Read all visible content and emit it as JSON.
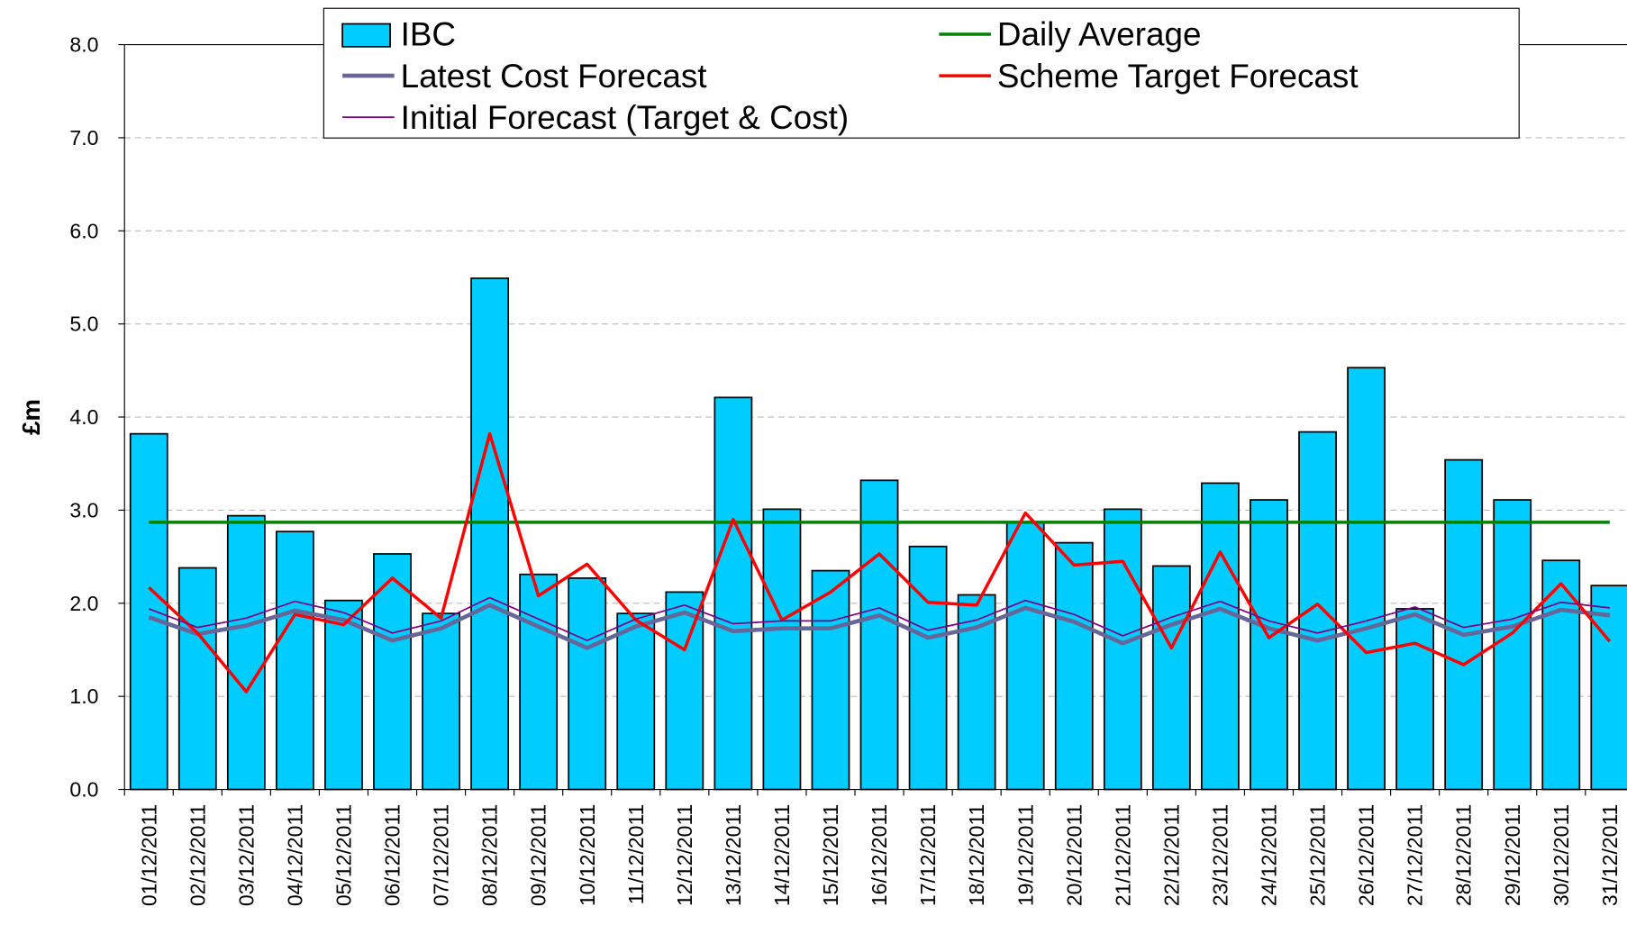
{
  "chart_data": {
    "type": "bar",
    "y_label": "£m",
    "categories": [
      "01/12/2011",
      "02/12/2011",
      "03/12/2011",
      "04/12/2011",
      "05/12/2011",
      "06/12/2011",
      "07/12/2011",
      "08/12/2011",
      "09/12/2011",
      "10/12/2011",
      "11/12/2011",
      "12/12/2011",
      "13/12/2011",
      "14/12/2011",
      "15/12/2011",
      "16/12/2011",
      "17/12/2011",
      "18/12/2011",
      "19/12/2011",
      "20/12/2011",
      "21/12/2011",
      "22/12/2011",
      "23/12/2011",
      "24/12/2011",
      "25/12/2011",
      "26/12/2011",
      "27/12/2011",
      "28/12/2011",
      "29/12/2011",
      "30/12/2011",
      "31/12/2011"
    ],
    "series": [
      {
        "name": "IBC",
        "type": "bar",
        "color": "#00ccff",
        "values": [
          3.82,
          2.38,
          2.94,
          2.77,
          2.03,
          2.53,
          1.89,
          5.49,
          2.31,
          2.27,
          1.89,
          2.12,
          4.21,
          3.01,
          2.35,
          3.32,
          2.61,
          2.09,
          2.87,
          2.65,
          3.01,
          2.4,
          3.29,
          3.11,
          3.84,
          4.53,
          1.94,
          3.54,
          3.11,
          2.46,
          2.19
        ]
      },
      {
        "name": "Daily Average",
        "type": "line",
        "color": "#008000",
        "width": 3,
        "values": [
          2.87,
          2.87,
          2.87,
          2.87,
          2.87,
          2.87,
          2.87,
          2.87,
          2.87,
          2.87,
          2.87,
          2.87,
          2.87,
          2.87,
          2.87,
          2.87,
          2.87,
          2.87,
          2.87,
          2.87,
          2.87,
          2.87,
          2.87,
          2.87,
          2.87,
          2.87,
          2.87,
          2.87,
          2.87,
          2.87,
          2.87
        ]
      },
      {
        "name": "Latest Cost Forecast",
        "type": "line",
        "color": "#666699",
        "width": 4,
        "values": [
          1.85,
          1.67,
          1.76,
          1.92,
          1.82,
          1.6,
          1.73,
          1.98,
          1.75,
          1.52,
          1.75,
          1.9,
          1.7,
          1.73,
          1.73,
          1.87,
          1.63,
          1.74,
          1.95,
          1.8,
          1.57,
          1.77,
          1.94,
          1.73,
          1.6,
          1.73,
          1.88,
          1.66,
          1.75,
          1.93,
          1.87
        ]
      },
      {
        "name": "Scheme Target Forecast",
        "type": "line",
        "color": "#ff0000",
        "width": 3,
        "values": [
          2.17,
          1.68,
          1.05,
          1.88,
          1.77,
          2.27,
          1.84,
          3.82,
          2.08,
          2.42,
          1.82,
          1.5,
          2.9,
          1.82,
          2.12,
          2.53,
          2.01,
          1.98,
          2.97,
          2.41,
          2.45,
          1.52,
          2.55,
          1.63,
          1.99,
          1.47,
          1.57,
          1.34,
          1.68,
          2.21,
          1.59
        ]
      },
      {
        "name": "Initial Forecast (Target & Cost)",
        "type": "line",
        "color": "#800080",
        "width": 1.5,
        "values": [
          1.94,
          1.74,
          1.84,
          2.02,
          1.9,
          1.68,
          1.81,
          2.06,
          1.83,
          1.6,
          1.83,
          1.98,
          1.78,
          1.81,
          1.81,
          1.95,
          1.71,
          1.82,
          2.03,
          1.88,
          1.65,
          1.85,
          2.02,
          1.81,
          1.68,
          1.81,
          1.96,
          1.74,
          1.83,
          2.01,
          1.95
        ]
      }
    ],
    "ylim": [
      0,
      8
    ],
    "yticks": [
      {
        "value": 0,
        "label": "0.0"
      },
      {
        "value": 1,
        "label": "1.0"
      },
      {
        "value": 2,
        "label": "2.0"
      },
      {
        "value": 3,
        "label": "3.0"
      },
      {
        "value": 4,
        "label": "4.0"
      },
      {
        "value": 5,
        "label": "5.0"
      },
      {
        "value": 6,
        "label": "6.0"
      },
      {
        "value": 7,
        "label": "7.0"
      },
      {
        "value": 8,
        "label": "8.0"
      }
    ],
    "grid": true,
    "legend": "top"
  }
}
